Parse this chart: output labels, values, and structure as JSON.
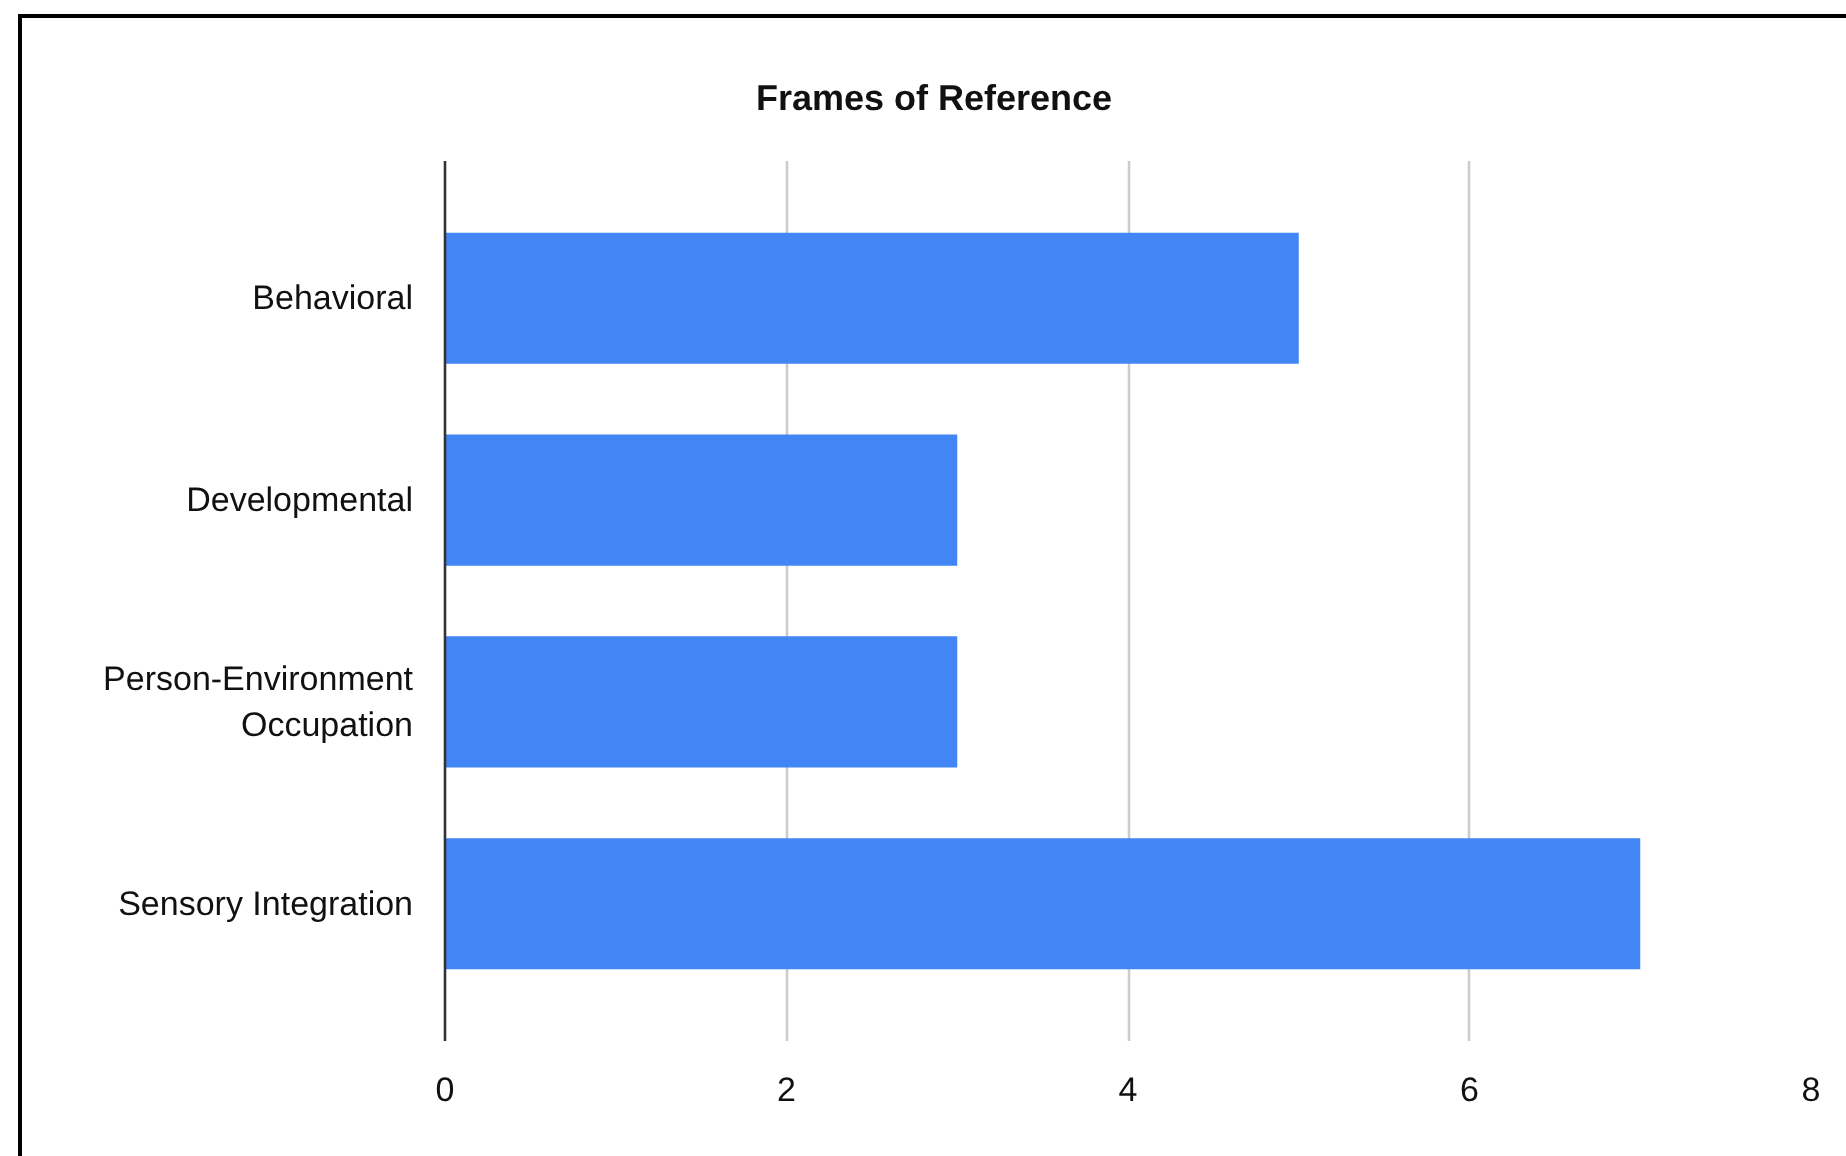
{
  "chart_data": {
    "type": "bar",
    "orientation": "horizontal",
    "title": "Frames of Reference",
    "categories": [
      "Behavioral",
      "Developmental",
      "Person-Environment Occupation",
      "Sensory Integration"
    ],
    "values": [
      5,
      3,
      3,
      7
    ],
    "color": "#4285f4",
    "xlim": [
      0,
      8
    ],
    "xticks": [
      0,
      2,
      4,
      6,
      8
    ],
    "grid": "x"
  }
}
